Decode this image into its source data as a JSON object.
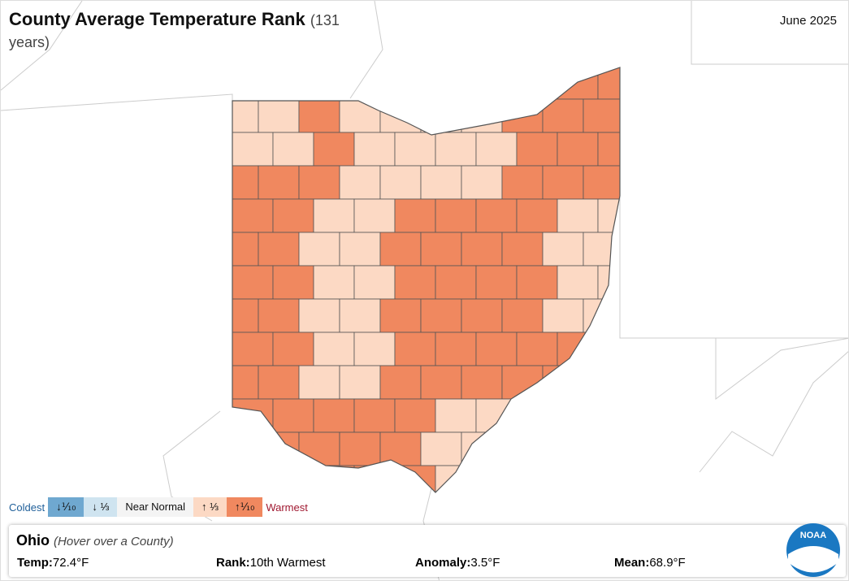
{
  "title": "County Average Temperature Rank",
  "subtitle": "(131 years)",
  "date": "June 2025",
  "legend": {
    "low": "Coldest",
    "high": "Warmest",
    "items": [
      {
        "label": "↓⅒",
        "color": "#6fa8d0"
      },
      {
        "label": "↓ ⅓",
        "color": "#cfe4f0"
      },
      {
        "label": "Near Normal",
        "color": "#f4f4f4"
      },
      {
        "label": "↑ ⅓",
        "color": "#fcd9c4"
      },
      {
        "label": "↑⅒",
        "color": "#f0885f"
      }
    ]
  },
  "panel": {
    "state": "Ohio",
    "hint": "(Hover over a County)",
    "stats": [
      {
        "label": "Temp:",
        "value": "72.4°F"
      },
      {
        "label": "Rank:",
        "value": "10th Warmest"
      },
      {
        "label": "Anomaly:",
        "value": "3.5°F"
      },
      {
        "label": "Mean:",
        "value": "68.9°F"
      }
    ]
  },
  "logo": "NOAA"
}
